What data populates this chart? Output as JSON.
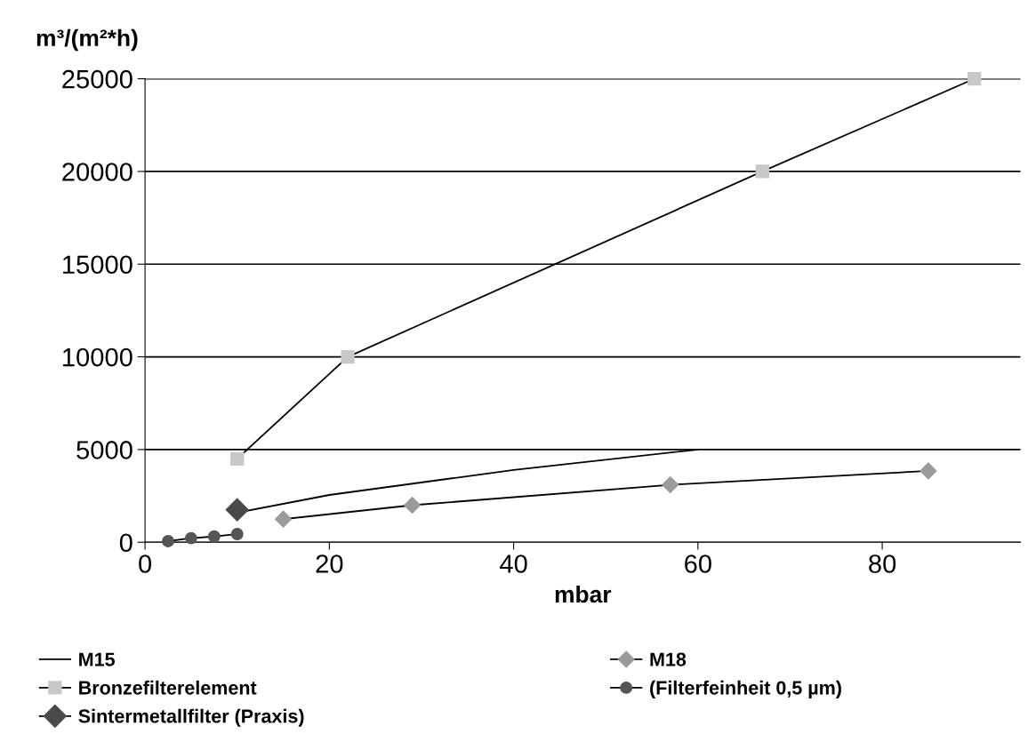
{
  "chart_data": {
    "type": "line",
    "ylabel": "m³/(m²*h)",
    "xlabel": "mbar",
    "xlim": [
      0,
      95
    ],
    "xticks": [
      0,
      20,
      40,
      60,
      80
    ],
    "ylim": [
      0,
      25000
    ],
    "yticks": [
      0,
      5000,
      10000,
      15000,
      20000,
      25000
    ],
    "grid": "y",
    "legend": "bottom",
    "series": [
      {
        "name": "M15",
        "color": "#000000",
        "marker": "none",
        "x": [
          10,
          20,
          40,
          60
        ],
        "values": [
          1600,
          2550,
          3900,
          5000
        ]
      },
      {
        "name": "Bronzefilterelement",
        "color": "#c8c8c8",
        "marker": "square",
        "x": [
          10,
          22,
          67,
          90
        ],
        "values": [
          4500,
          10000,
          20000,
          25000
        ]
      },
      {
        "name": "Sintermetallfilter (Praxis)",
        "color": "#4a4a4a",
        "marker": "diamond",
        "x": [
          10
        ],
        "values": [
          1750
        ]
      },
      {
        "name": "M18",
        "color": "#9a9a9a",
        "marker": "diamond",
        "x": [
          15,
          29,
          57,
          85
        ],
        "values": [
          1250,
          2000,
          3100,
          3850
        ]
      },
      {
        "name": "(Filterfeinheit 0,5 µm)",
        "color": "#555555",
        "marker": "circle",
        "x": [
          2.5,
          5,
          7.5,
          10
        ],
        "values": [
          60,
          220,
          310,
          440
        ]
      }
    ]
  }
}
